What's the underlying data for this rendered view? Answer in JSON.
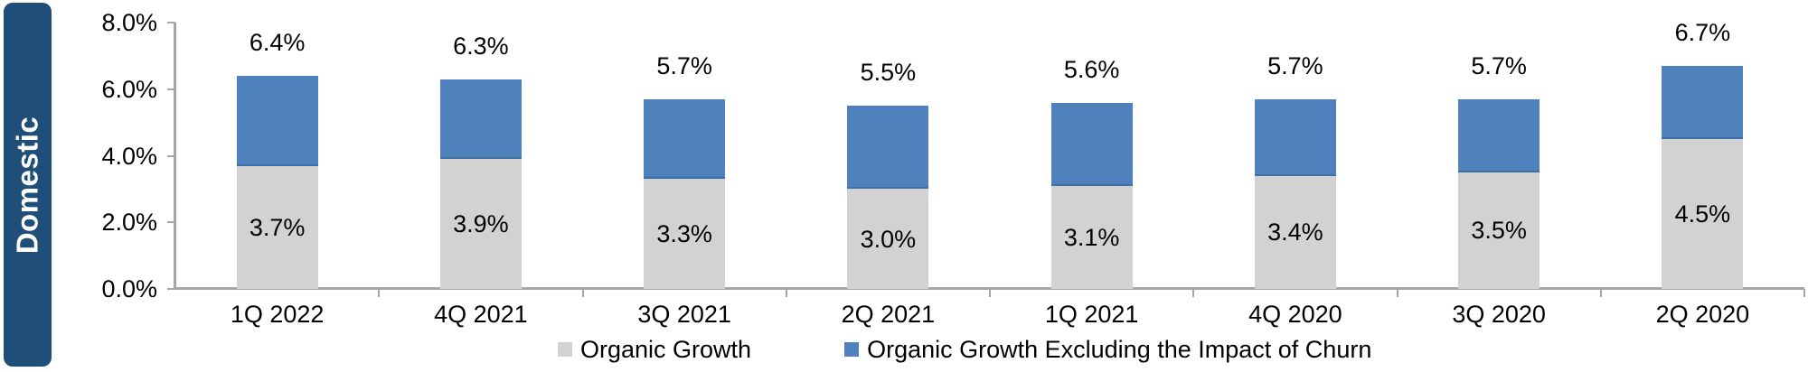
{
  "banner": {
    "label": "Domestic",
    "bg_color": "#1F4E79",
    "text_color": "#FFFFFF"
  },
  "chart_data": {
    "type": "bar",
    "stacked": true,
    "categories": [
      "1Q 2022",
      "4Q 2021",
      "3Q 2021",
      "2Q 2021",
      "1Q 2021",
      "4Q 2020",
      "3Q 2020",
      "2Q 2020"
    ],
    "series": [
      {
        "name": "Organic Growth",
        "color": "#D2D2D2",
        "values": [
          3.7,
          3.9,
          3.3,
          3.0,
          3.1,
          3.4,
          3.5,
          4.5
        ]
      },
      {
        "name": "Organic Growth Excluding the Impact of Churn",
        "color": "#4F81BD",
        "values": [
          2.7,
          2.4,
          2.4,
          2.5,
          2.5,
          2.3,
          2.2,
          2.2
        ]
      }
    ],
    "totals": [
      6.4,
      6.3,
      5.7,
      5.5,
      5.6,
      5.7,
      5.7,
      6.7
    ],
    "total_labels": [
      "6.4%",
      "6.3%",
      "5.7%",
      "5.5%",
      "5.6%",
      "5.7%",
      "5.7%",
      "6.7%"
    ],
    "segment_labels": [
      "3.7%",
      "3.9%",
      "3.3%",
      "3.0%",
      "3.1%",
      "3.4%",
      "3.5%",
      "4.5%"
    ],
    "y_axis": {
      "ticks": [
        "0.0%",
        "2.0%",
        "4.0%",
        "6.0%",
        "8.0%"
      ],
      "tick_values": [
        0,
        2,
        4,
        6,
        8
      ],
      "ylim": [
        0,
        8
      ]
    },
    "legend": [
      {
        "label": "Organic Growth",
        "color": "#D2D2D2"
      },
      {
        "label": "Organic Growth Excluding the Impact of Churn",
        "color": "#4F81BD"
      }
    ],
    "grid": false,
    "legend_position": "bottom",
    "axis_color": "#A6A6A6"
  }
}
